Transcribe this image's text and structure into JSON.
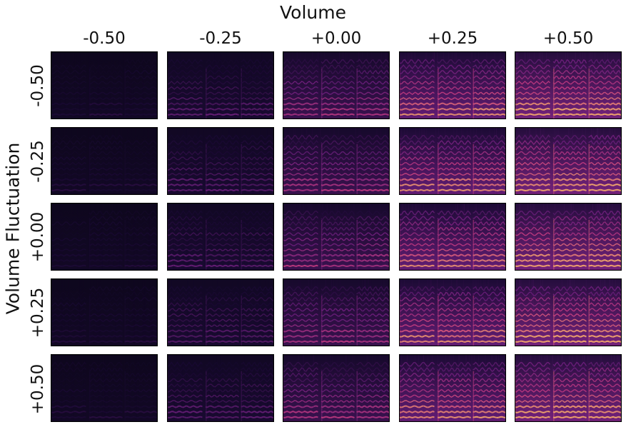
{
  "chart_data": {
    "type": "heatmap",
    "title": "",
    "xlabel": "Volume",
    "ylabel": "Volume Fluctuation",
    "col_values": [
      "-0.50",
      "-0.25",
      "+0.00",
      "+0.25",
      "+0.50"
    ],
    "row_values": [
      "-0.50",
      "-0.25",
      "+0.00",
      "+0.25",
      "+0.50"
    ],
    "panel_content": "mel spectrogram",
    "colormap": "magma",
    "brightness_by_col": [
      0.12,
      0.3,
      0.5,
      0.72,
      0.8
    ],
    "harmonic_bands": 11,
    "colors": {
      "background": "#0b0618",
      "dark": "#1a0a33",
      "mid": "#6a1f7a",
      "bright": "#c23a7f",
      "hot": "#f2a86a",
      "border": "#000000"
    }
  }
}
